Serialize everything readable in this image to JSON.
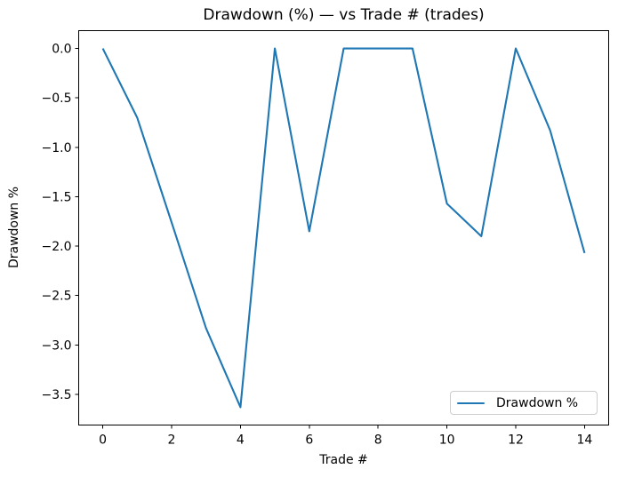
{
  "figure": {
    "background": "#ffffff"
  },
  "colors": {
    "line": "#1f77b4",
    "spine": "#000000",
    "text": "#000000",
    "legend_border": "#cccccc"
  },
  "legend": {
    "label": "Drawdown %"
  },
  "chart_data": {
    "type": "line",
    "title": "Drawdown (%) — vs Trade # (trades)",
    "xlabel": "Trade #",
    "ylabel": "Drawdown %",
    "x": [
      0,
      1,
      2,
      3,
      4,
      5,
      6,
      7,
      8,
      9,
      10,
      11,
      12,
      13,
      14
    ],
    "series": [
      {
        "name": "Drawdown %",
        "color": "#1f77b4",
        "values": [
          0.0,
          -0.7,
          -1.76,
          -2.83,
          -3.63,
          0.0,
          -1.85,
          0.0,
          0.0,
          0.0,
          -1.57,
          -1.9,
          0.0,
          -0.83,
          -2.07
        ]
      }
    ],
    "xlim": [
      -0.7,
      14.7
    ],
    "ylim": [
      -3.81,
      0.18
    ],
    "xticks": [
      0,
      2,
      4,
      6,
      8,
      10,
      12,
      14
    ],
    "xtick_labels": [
      "0",
      "2",
      "4",
      "6",
      "8",
      "10",
      "12",
      "14"
    ],
    "yticks": [
      0.0,
      -0.5,
      -1.0,
      -1.5,
      -2.0,
      -2.5,
      -3.0,
      -3.5
    ],
    "ytick_labels": [
      "0.0",
      "−0.5",
      "−1.0",
      "−1.5",
      "−2.0",
      "−2.5",
      "−3.0",
      "−3.5"
    ],
    "grid": false,
    "legend_position": "lower right"
  }
}
